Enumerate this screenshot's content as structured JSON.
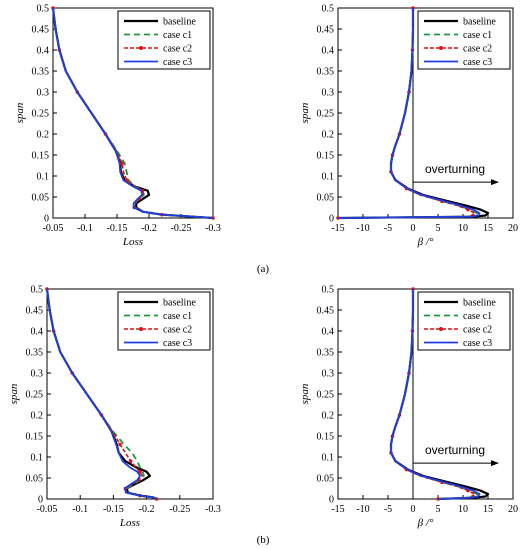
{
  "captions": [
    "(a)",
    "(b)"
  ],
  "colors": {
    "baseline": "#000000",
    "case c1": "#1a9a3a",
    "case c2": "#dd1111",
    "case c3": "#1f3fe0"
  },
  "chart_data": [
    {
      "type": "line",
      "group": "(a)",
      "xlabel": "Loss",
      "ylabel": "span",
      "xlim": [
        -0.05,
        -0.3
      ],
      "ylim": [
        0,
        0.5
      ],
      "xticks": [
        "-0.05",
        "-0.1",
        "-0.15",
        "-0.2",
        "-0.25",
        "-0.3"
      ],
      "yticks": [
        "0",
        "0.05",
        "0.1",
        "0.15",
        "0.2",
        "0.25",
        "0.3",
        "0.35",
        "0.4",
        "0.45",
        "0.5"
      ],
      "legend": "top-right",
      "y": [
        0.5,
        0.45,
        0.4,
        0.35,
        0.3,
        0.25,
        0.2,
        0.16,
        0.13,
        0.11,
        0.09,
        0.075,
        0.065,
        0.055,
        0.045,
        0.035,
        0.025,
        0.015,
        0.008,
        0.004,
        0.0
      ],
      "series": [
        {
          "name": "baseline",
          "style": "solid",
          "x": [
            -0.05,
            -0.054,
            -0.06,
            -0.07,
            -0.088,
            -0.11,
            -0.132,
            -0.148,
            -0.155,
            -0.156,
            -0.162,
            -0.178,
            -0.198,
            -0.2,
            -0.19,
            -0.18,
            -0.18,
            -0.19,
            -0.22,
            -0.26,
            -0.3
          ]
        },
        {
          "name": "case c1",
          "style": "dashed",
          "x": [
            -0.05,
            -0.054,
            -0.06,
            -0.07,
            -0.088,
            -0.11,
            -0.132,
            -0.15,
            -0.162,
            -0.165,
            -0.168,
            -0.178,
            -0.19,
            -0.192,
            -0.185,
            -0.178,
            -0.178,
            -0.19,
            -0.22,
            -0.26,
            -0.3
          ]
        },
        {
          "name": "case c2",
          "style": "dash-dot-marker",
          "x": [
            -0.05,
            -0.054,
            -0.06,
            -0.07,
            -0.088,
            -0.11,
            -0.132,
            -0.149,
            -0.158,
            -0.16,
            -0.165,
            -0.177,
            -0.19,
            -0.191,
            -0.184,
            -0.177,
            -0.177,
            -0.19,
            -0.22,
            -0.26,
            -0.3
          ]
        },
        {
          "name": "case c3",
          "style": "solid",
          "x": [
            -0.05,
            -0.054,
            -0.06,
            -0.07,
            -0.088,
            -0.11,
            -0.132,
            -0.148,
            -0.154,
            -0.155,
            -0.16,
            -0.175,
            -0.188,
            -0.189,
            -0.182,
            -0.176,
            -0.176,
            -0.19,
            -0.22,
            -0.26,
            -0.3
          ]
        }
      ]
    },
    {
      "type": "line",
      "group": "(a)",
      "xlabel": "β /°",
      "ylabel": "span",
      "xlim": [
        -15,
        20
      ],
      "ylim": [
        0,
        0.5
      ],
      "xticks": [
        "-15",
        "-10",
        "-5",
        "0",
        "5",
        "10",
        "15",
        "20"
      ],
      "yticks": [
        "0",
        "0.05",
        "0.1",
        "0.15",
        "0.2",
        "0.25",
        "0.3",
        "0.35",
        "0.4",
        "0.45",
        "0.5"
      ],
      "legend": "top-right",
      "annotation": "overturning",
      "y": [
        0.5,
        0.45,
        0.4,
        0.35,
        0.3,
        0.25,
        0.2,
        0.17,
        0.15,
        0.13,
        0.11,
        0.09,
        0.07,
        0.055,
        0.04,
        0.03,
        0.02,
        0.012,
        0.006,
        0.003,
        0.0
      ],
      "series": [
        {
          "name": "baseline",
          "style": "solid",
          "x": [
            0,
            0,
            -0.1,
            -0.3,
            -0.8,
            -1.6,
            -2.7,
            -3.6,
            -4.1,
            -4.4,
            -4.4,
            -3.5,
            -1.0,
            2.0,
            7.0,
            10.5,
            13.5,
            15.0,
            14.5,
            12.0,
            -15.0
          ]
        },
        {
          "name": "case c1",
          "style": "dashed",
          "x": [
            0,
            0,
            -0.1,
            -0.3,
            -0.8,
            -1.6,
            -2.7,
            -3.6,
            -4.1,
            -4.4,
            -4.4,
            -3.6,
            -1.2,
            1.5,
            6.0,
            9.0,
            11.5,
            12.8,
            12.5,
            11.0,
            -15.0
          ]
        },
        {
          "name": "case c2",
          "style": "dash-dot-marker",
          "x": [
            0,
            0,
            -0.1,
            -0.3,
            -0.8,
            -1.6,
            -2.7,
            -3.6,
            -4.1,
            -4.4,
            -4.4,
            -3.6,
            -1.3,
            1.4,
            5.8,
            8.8,
            11.0,
            12.3,
            12.0,
            10.8,
            -15.0
          ]
        },
        {
          "name": "case c3",
          "style": "solid",
          "x": [
            0,
            0,
            -0.1,
            -0.3,
            -0.8,
            -1.6,
            -2.7,
            -3.6,
            -4.1,
            -4.4,
            -4.4,
            -3.5,
            -1.1,
            1.7,
            6.3,
            9.4,
            12.0,
            13.3,
            13.0,
            11.5,
            -15.0
          ]
        }
      ]
    },
    {
      "type": "line",
      "group": "(b)",
      "xlabel": "Loss",
      "ylabel": "span",
      "xlim": [
        -0.05,
        -0.3
      ],
      "ylim": [
        0,
        0.5
      ],
      "xticks": [
        "-0.05",
        "-0.1",
        "-0.15",
        "-0.2",
        "-0.25",
        "-0.3"
      ],
      "yticks": [
        "0",
        "0.05",
        "0.1",
        "0.15",
        "0.2",
        "0.25",
        "0.3",
        "0.35",
        "0.4",
        "0.45",
        "0.5"
      ],
      "legend": "top-right",
      "y": [
        0.5,
        0.45,
        0.4,
        0.35,
        0.3,
        0.25,
        0.2,
        0.16,
        0.13,
        0.11,
        0.09,
        0.075,
        0.065,
        0.055,
        0.045,
        0.035,
        0.025,
        0.015,
        0.008,
        0.004,
        0.0
      ],
      "series": [
        {
          "name": "baseline",
          "style": "solid",
          "x": [
            -0.05,
            -0.054,
            -0.06,
            -0.07,
            -0.088,
            -0.11,
            -0.132,
            -0.148,
            -0.155,
            -0.158,
            -0.168,
            -0.185,
            -0.2,
            -0.205,
            -0.195,
            -0.182,
            -0.17,
            -0.172,
            -0.19,
            -0.21,
            -0.215
          ]
        },
        {
          "name": "case c1",
          "style": "dashed",
          "x": [
            -0.05,
            -0.054,
            -0.06,
            -0.07,
            -0.088,
            -0.11,
            -0.132,
            -0.15,
            -0.166,
            -0.178,
            -0.186,
            -0.19,
            -0.194,
            -0.196,
            -0.19,
            -0.18,
            -0.17,
            -0.172,
            -0.19,
            -0.21,
            -0.215
          ]
        },
        {
          "name": "case c2",
          "style": "dash-dot-marker",
          "x": [
            -0.05,
            -0.054,
            -0.06,
            -0.07,
            -0.088,
            -0.11,
            -0.132,
            -0.149,
            -0.16,
            -0.168,
            -0.176,
            -0.184,
            -0.19,
            -0.193,
            -0.188,
            -0.178,
            -0.168,
            -0.17,
            -0.19,
            -0.21,
            -0.215
          ]
        },
        {
          "name": "case c3",
          "style": "solid",
          "x": [
            -0.05,
            -0.054,
            -0.06,
            -0.07,
            -0.088,
            -0.11,
            -0.132,
            -0.147,
            -0.154,
            -0.158,
            -0.164,
            -0.175,
            -0.186,
            -0.19,
            -0.186,
            -0.176,
            -0.167,
            -0.169,
            -0.19,
            -0.21,
            -0.215
          ]
        }
      ]
    },
    {
      "type": "line",
      "group": "(b)",
      "xlabel": "β /°",
      "ylabel": "span",
      "xlim": [
        -15,
        20
      ],
      "ylim": [
        0,
        0.5
      ],
      "xticks": [
        "-15",
        "-10",
        "-5",
        "0",
        "5",
        "10",
        "15",
        "20"
      ],
      "yticks": [
        "0",
        "0.05",
        "0.1",
        "0.15",
        "0.2",
        "0.25",
        "0.3",
        "0.35",
        "0.4",
        "0.45",
        "0.5"
      ],
      "legend": "top-right",
      "annotation": "overturning",
      "y": [
        0.5,
        0.45,
        0.4,
        0.35,
        0.3,
        0.25,
        0.2,
        0.17,
        0.15,
        0.13,
        0.11,
        0.09,
        0.07,
        0.055,
        0.04,
        0.03,
        0.02,
        0.012,
        0.006,
        0.003,
        0.0
      ],
      "series": [
        {
          "name": "baseline",
          "style": "solid",
          "x": [
            0,
            0,
            -0.1,
            -0.3,
            -0.8,
            -1.6,
            -2.7,
            -3.6,
            -4.1,
            -4.4,
            -4.4,
            -3.5,
            -1.0,
            2.0,
            7.0,
            10.5,
            13.5,
            15.0,
            14.5,
            12.0,
            5.0
          ]
        },
        {
          "name": "case c1",
          "style": "dashed",
          "x": [
            0,
            0,
            -0.1,
            -0.3,
            -0.8,
            -1.6,
            -2.7,
            -3.6,
            -4.1,
            -4.4,
            -4.4,
            -3.6,
            -1.2,
            1.5,
            6.0,
            9.0,
            11.5,
            12.8,
            12.5,
            11.0,
            5.0
          ]
        },
        {
          "name": "case c2",
          "style": "dash-dot-marker",
          "x": [
            0,
            0,
            -0.1,
            -0.3,
            -0.8,
            -1.6,
            -2.7,
            -3.6,
            -4.1,
            -4.4,
            -4.4,
            -3.6,
            -1.3,
            1.4,
            5.8,
            8.8,
            11.0,
            12.3,
            12.0,
            10.8,
            5.0
          ]
        },
        {
          "name": "case c3",
          "style": "solid",
          "x": [
            0,
            0,
            -0.1,
            -0.3,
            -0.8,
            -1.6,
            -2.7,
            -3.6,
            -4.1,
            -4.4,
            -4.4,
            -3.5,
            -1.1,
            1.7,
            6.3,
            9.4,
            12.0,
            13.3,
            13.0,
            11.5,
            5.0
          ]
        }
      ]
    }
  ]
}
